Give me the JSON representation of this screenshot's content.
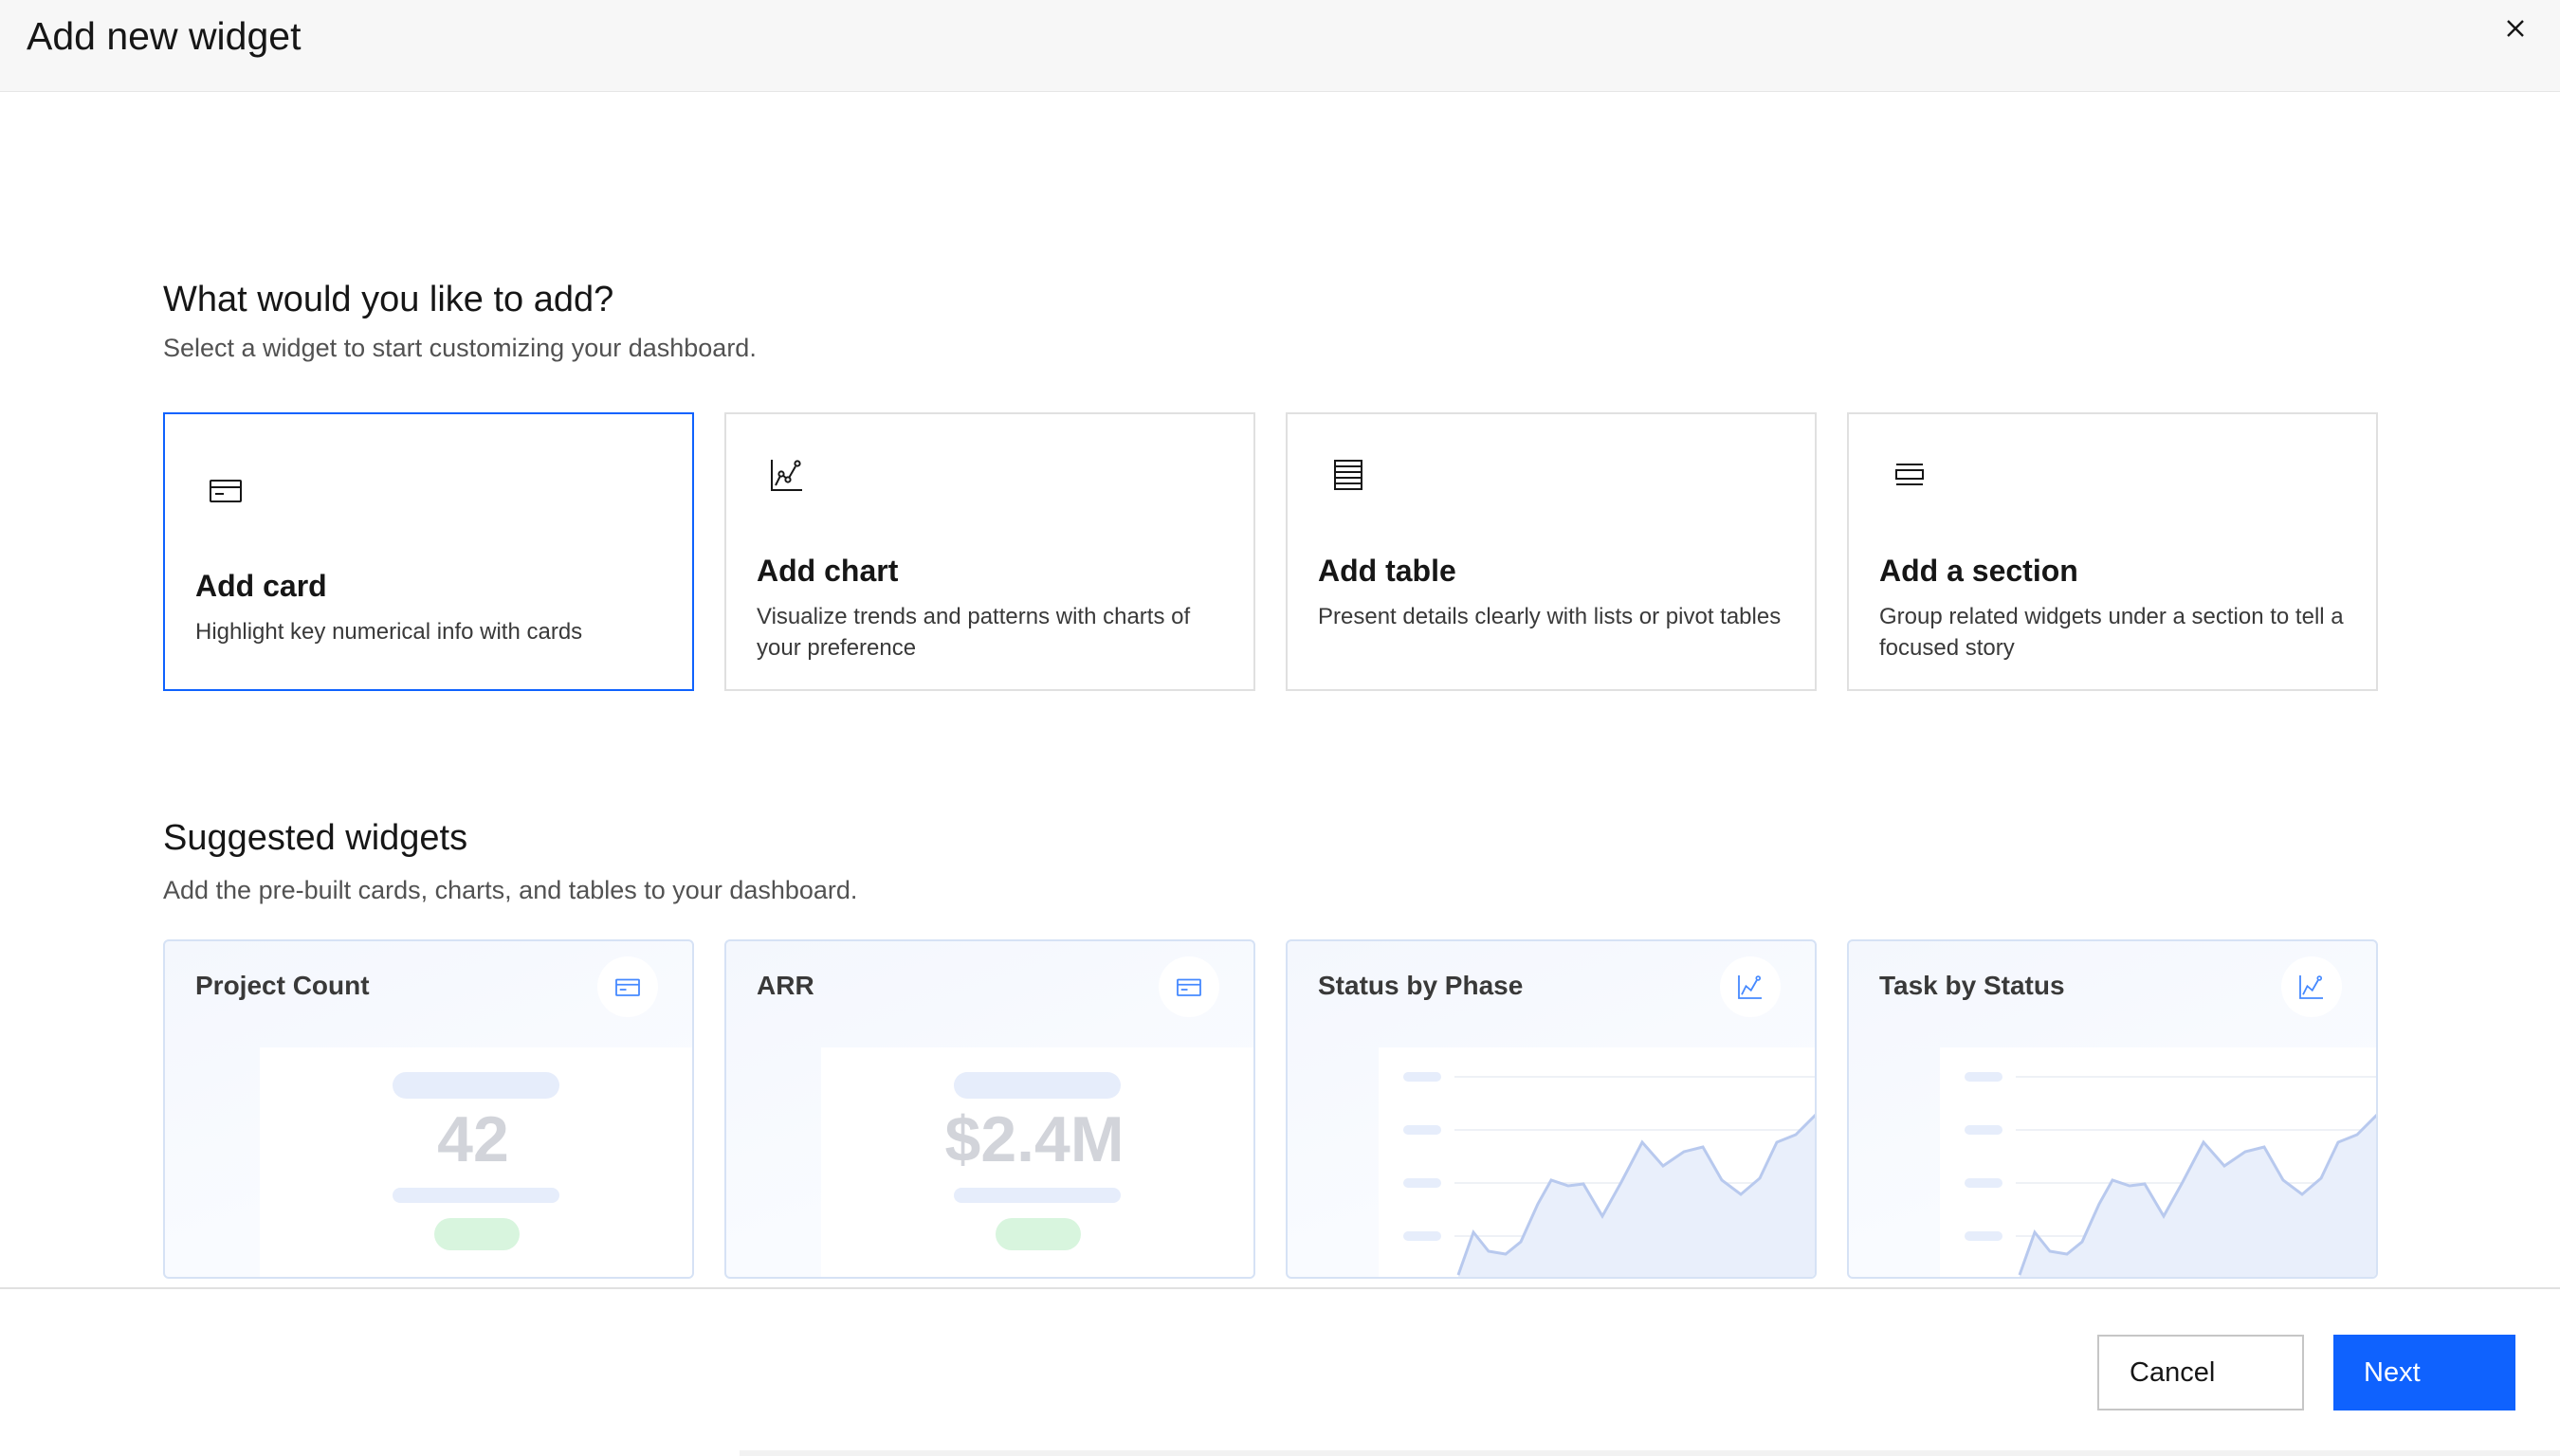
{
  "header": {
    "title": "Add new widget",
    "close_icon": "close-icon"
  },
  "add_section": {
    "heading": "What would you like to add?",
    "subheading": "Select a widget to start customizing your dashboard.",
    "options": [
      {
        "title": "Add card",
        "description": "Highlight key numerical info with cards",
        "icon": "card-icon",
        "selected": true
      },
      {
        "title": "Add chart",
        "description": "Visualize trends and patterns with charts of your preference",
        "icon": "chart-icon",
        "selected": false
      },
      {
        "title": "Add table",
        "description": "Present details clearly with lists or pivot tables",
        "icon": "table-icon",
        "selected": false
      },
      {
        "title": "Add a section",
        "description": "Group related widgets under a section to tell a focused story",
        "icon": "section-icon",
        "selected": false
      }
    ]
  },
  "suggested": {
    "heading": "Suggested widgets",
    "subheading": "Add the pre-built cards, charts, and tables to your dashboard.",
    "widgets": [
      {
        "title": "Project Count",
        "preview_value": "42",
        "icon": "card-icon",
        "kind": "card"
      },
      {
        "title": "ARR",
        "preview_value": "$2.4M",
        "icon": "card-icon",
        "kind": "card"
      },
      {
        "title": "Status by Phase",
        "icon": "chart-icon",
        "kind": "chart"
      },
      {
        "title": "Task by Status",
        "icon": "chart-icon",
        "kind": "chart"
      }
    ]
  },
  "footer": {
    "cancel_label": "Cancel",
    "next_label": "Next"
  },
  "colors": {
    "accent": "#0f62fe",
    "border": "#e0e0e0",
    "chart_line": "#b8c9ee",
    "chart_fill": "#e9effb",
    "pill_blue": "#e6edfb",
    "pill_green": "#d8f5de"
  }
}
